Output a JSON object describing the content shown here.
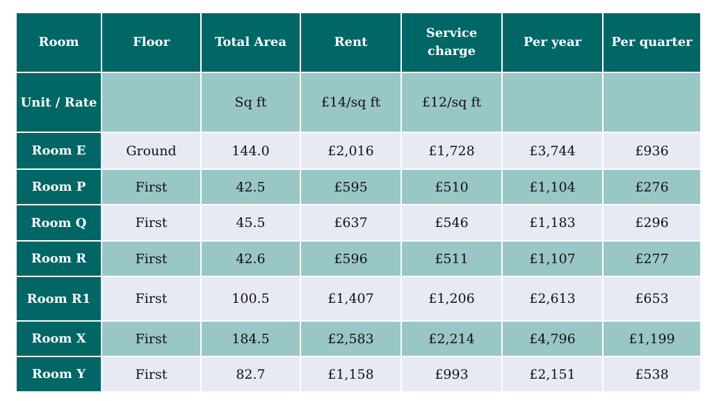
{
  "table": {
    "headers": [
      "Room",
      "Floor",
      "Total Area",
      "Rent",
      "Service charge",
      "Per year",
      "Per quarter"
    ],
    "unit_row": {
      "label": "Unit / Rate",
      "cells": [
        "",
        "Sq ft",
        "£14/sq ft",
        "£12/sq ft",
        "",
        ""
      ]
    },
    "rows": [
      {
        "room": "Room E",
        "cells": [
          "Ground",
          "144.0",
          "£2,016",
          "£1,728",
          "£3,744",
          "£936"
        ]
      },
      {
        "room": "Room P",
        "cells": [
          "First",
          "42.5",
          "£595",
          "£510",
          "£1,104",
          "£276"
        ]
      },
      {
        "room": "Room Q",
        "cells": [
          "First",
          "45.5",
          "£637",
          "£546",
          "£1,183",
          "£296"
        ]
      },
      {
        "room": "Room R",
        "cells": [
          "First",
          "42.6",
          "£596",
          "£511",
          "£1,107",
          "£277"
        ]
      },
      {
        "room": "Room R1",
        "cells": [
          "First",
          "100.5",
          "£1,407",
          "£1,206",
          "£2,613",
          "£653"
        ]
      },
      {
        "room": "Room X",
        "cells": [
          "First",
          "184.5",
          "£2,583",
          "£2,214",
          "£4,796",
          "£1,199"
        ]
      },
      {
        "room": "Room Y",
        "cells": [
          "First",
          "82.7",
          "£1,158",
          "£993",
          "£2,151",
          "£538"
        ]
      }
    ]
  },
  "colors": {
    "header_bg": "#006666",
    "row_light": "#e8eaf3",
    "row_teal": "#99c7c6",
    "header_text": "#ffffff"
  }
}
